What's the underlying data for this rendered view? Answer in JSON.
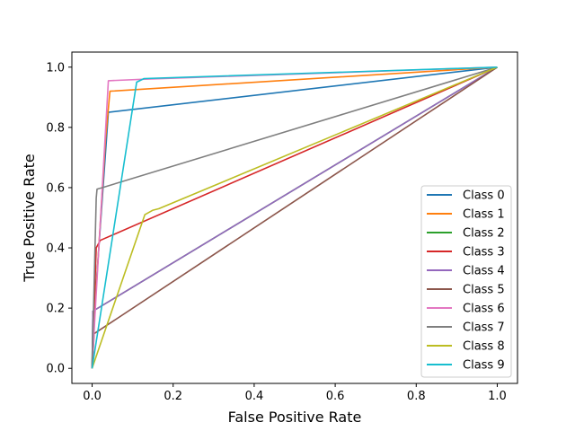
{
  "chart_data": {
    "type": "line",
    "title": "",
    "xlabel": "False Positive Rate",
    "ylabel": "True Positive Rate",
    "xlim": [
      -0.05,
      1.05
    ],
    "ylim": [
      -0.05,
      1.05
    ],
    "xticks": [
      0.0,
      0.2,
      0.4,
      0.6,
      0.8,
      1.0
    ],
    "yticks": [
      0.0,
      0.2,
      0.4,
      0.6,
      0.8,
      1.0
    ],
    "xtick_labels": [
      "0.0",
      "0.2",
      "0.4",
      "0.6",
      "0.8",
      "1.0"
    ],
    "ytick_labels": [
      "0.0",
      "0.2",
      "0.4",
      "0.6",
      "0.8",
      "1.0"
    ],
    "grid": false,
    "legend_position": "lower-right",
    "series": [
      {
        "name": "Class 0",
        "color": "#1f77b4",
        "x": [
          0,
          0.002,
          0.04,
          1
        ],
        "y": [
          0,
          0.12,
          0.85,
          1
        ]
      },
      {
        "name": "Class 1",
        "color": "#ff7f0e",
        "x": [
          0,
          0.004,
          0.033,
          0.044,
          1
        ],
        "y": [
          0,
          0.13,
          0.76,
          0.92,
          1
        ]
      },
      {
        "name": "Class 2",
        "color": "#2ca02c",
        "x": [
          0,
          0.002,
          1
        ],
        "y": [
          0,
          0.19,
          1
        ]
      },
      {
        "name": "Class 3",
        "color": "#d62728",
        "x": [
          0,
          0.01,
          0.02,
          1
        ],
        "y": [
          0,
          0.4,
          0.425,
          1
        ]
      },
      {
        "name": "Class 4",
        "color": "#9467bd",
        "x": [
          0,
          0.002,
          1
        ],
        "y": [
          0,
          0.19,
          1
        ]
      },
      {
        "name": "Class 5",
        "color": "#8c564b",
        "x": [
          0,
          0.005,
          1
        ],
        "y": [
          0,
          0.115,
          1
        ]
      },
      {
        "name": "Class 6",
        "color": "#e377c2",
        "x": [
          0,
          0.008,
          0.04,
          0.13,
          1
        ],
        "y": [
          0,
          0.2,
          0.955,
          0.96,
          1
        ]
      },
      {
        "name": "Class 7",
        "color": "#7f7f7f",
        "x": [
          0,
          0.01,
          0.012,
          0.025,
          1
        ],
        "y": [
          0,
          0.565,
          0.595,
          0.6,
          1
        ]
      },
      {
        "name": "Class 8",
        "color": "#bcbd22",
        "x": [
          0,
          0.13,
          0.15,
          0.165,
          1
        ],
        "y": [
          0,
          0.51,
          0.525,
          0.53,
          1
        ]
      },
      {
        "name": "Class 9",
        "color": "#17becf",
        "x": [
          0,
          0.11,
          0.128,
          1
        ],
        "y": [
          0,
          0.95,
          0.962,
          1
        ]
      }
    ]
  }
}
